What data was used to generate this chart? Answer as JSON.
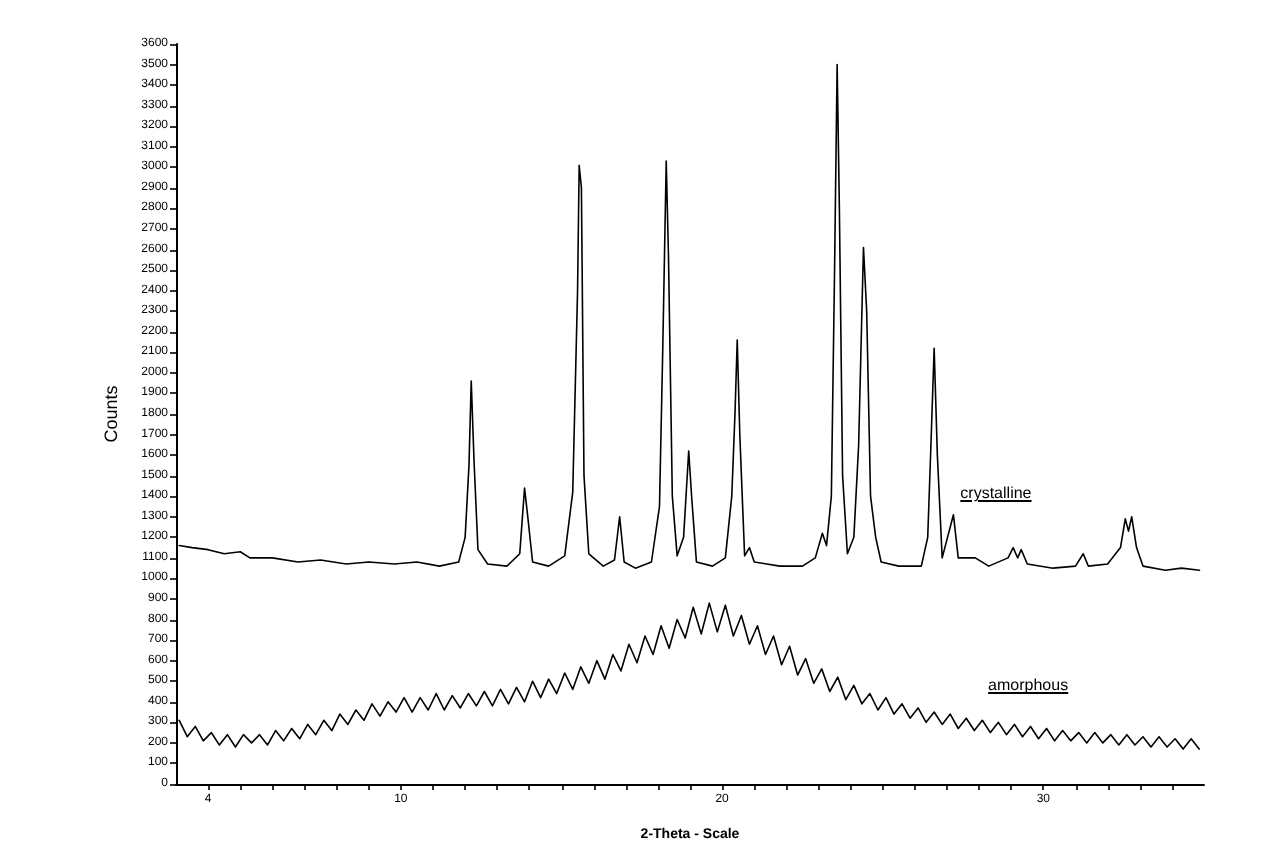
{
  "chart_data": {
    "type": "line",
    "xlabel": "2-Theta - Scale",
    "ylabel": "Counts",
    "line_style": "solid",
    "xlim": [
      3,
      35
    ],
    "xticks": [
      4,
      {
        "value": 5,
        "label": null
      },
      {
        "value": 6,
        "label": null
      },
      {
        "value": 7,
        "label": null
      },
      {
        "value": 8,
        "label": null
      },
      {
        "value": 9,
        "label": null
      },
      10,
      {
        "value": 11,
        "label": null
      },
      {
        "value": 12,
        "label": null
      },
      {
        "value": 13,
        "label": null
      },
      {
        "value": 14,
        "label": null
      },
      {
        "value": 15,
        "label": null
      },
      {
        "value": 16,
        "label": null
      },
      {
        "value": 17,
        "label": null
      },
      {
        "value": 18,
        "label": null
      },
      {
        "value": 19,
        "label": null
      },
      20,
      {
        "value": 21,
        "label": null
      },
      {
        "value": 22,
        "label": null
      },
      {
        "value": 23,
        "label": null
      },
      {
        "value": 24,
        "label": null
      },
      {
        "value": 25,
        "label": null
      },
      {
        "value": 26,
        "label": null
      },
      {
        "value": 27,
        "label": null
      },
      {
        "value": 28,
        "label": null
      },
      {
        "value": 29,
        "label": null
      },
      30,
      {
        "value": 31,
        "label": null
      },
      {
        "value": 32,
        "label": null
      },
      {
        "value": 33,
        "label": null
      },
      {
        "value": 34,
        "label": null
      }
    ],
    "ylim": [
      0,
      3600
    ],
    "yticks": [
      0,
      100,
      200,
      300,
      400,
      500,
      600,
      700,
      800,
      900,
      1000,
      1100,
      1200,
      1300,
      1400,
      1500,
      1600,
      1700,
      1800,
      1900,
      2000,
      2100,
      2200,
      2300,
      2400,
      2500,
      2600,
      2700,
      2800,
      2900,
      3000,
      3100,
      3200,
      3300,
      3400,
      3500,
      3600
    ],
    "series": [
      {
        "name": "crystalline",
        "color": "#000000",
        "x": [
          3.1,
          3.5,
          4.0,
          4.5,
          5.0,
          5.3,
          6.0,
          6.8,
          7.5,
          8.3,
          9.0,
          9.8,
          10.5,
          11.2,
          11.8,
          12.0,
          12.12,
          12.19,
          12.28,
          12.4,
          12.7,
          13.3,
          13.7,
          13.85,
          13.95,
          14.1,
          14.6,
          15.1,
          15.35,
          15.5,
          15.55,
          15.62,
          15.7,
          15.85,
          16.3,
          16.65,
          16.81,
          16.95,
          17.3,
          17.8,
          18.05,
          18.15,
          18.26,
          18.33,
          18.45,
          18.6,
          18.8,
          18.96,
          19.05,
          19.2,
          19.7,
          20.1,
          20.3,
          20.4,
          20.47,
          20.55,
          20.7,
          20.85,
          21.0,
          21.8,
          22.5,
          22.9,
          23.12,
          23.25,
          23.4,
          23.5,
          23.58,
          23.65,
          23.75,
          23.9,
          24.1,
          24.25,
          24.4,
          24.5,
          24.62,
          24.78,
          24.95,
          25.5,
          26.2,
          26.4,
          26.5,
          26.6,
          26.7,
          26.85,
          27.2,
          27.35,
          27.88,
          28.3,
          28.9,
          29.06,
          29.2,
          29.31,
          29.5,
          30.3,
          31.0,
          31.24,
          31.4,
          32.0,
          32.4,
          32.55,
          32.65,
          32.75,
          32.9,
          33.1,
          33.8,
          34.3,
          34.86
        ],
        "values": [
          1160,
          1150,
          1140,
          1120,
          1130,
          1100,
          1100,
          1080,
          1090,
          1070,
          1080,
          1070,
          1080,
          1060,
          1080,
          1200,
          1550,
          1960,
          1560,
          1140,
          1070,
          1060,
          1120,
          1440,
          1300,
          1080,
          1060,
          1110,
          1420,
          2400,
          3010,
          2900,
          1500,
          1120,
          1060,
          1090,
          1300,
          1080,
          1050,
          1080,
          1350,
          2100,
          3030,
          2570,
          1400,
          1110,
          1200,
          1620,
          1400,
          1080,
          1060,
          1100,
          1400,
          1800,
          2160,
          1700,
          1110,
          1150,
          1080,
          1060,
          1060,
          1100,
          1220,
          1160,
          1400,
          2500,
          3500,
          2800,
          1500,
          1120,
          1200,
          1650,
          2610,
          2300,
          1400,
          1200,
          1080,
          1060,
          1060,
          1200,
          1650,
          2120,
          1600,
          1100,
          1310,
          1100,
          1100,
          1060,
          1100,
          1150,
          1100,
          1140,
          1070,
          1050,
          1060,
          1120,
          1060,
          1070,
          1150,
          1290,
          1230,
          1300,
          1150,
          1060,
          1040,
          1050,
          1040
        ]
      },
      {
        "name": "amorphous",
        "color": "#000000",
        "x": [
          3.1,
          3.35,
          3.6,
          3.85,
          4.1,
          4.35,
          4.6,
          4.85,
          5.1,
          5.35,
          5.6,
          5.85,
          6.1,
          6.35,
          6.6,
          6.85,
          7.1,
          7.35,
          7.6,
          7.85,
          8.1,
          8.35,
          8.6,
          8.85,
          9.1,
          9.35,
          9.6,
          9.85,
          10.1,
          10.35,
          10.6,
          10.85,
          11.1,
          11.35,
          11.6,
          11.85,
          12.1,
          12.35,
          12.6,
          12.85,
          13.1,
          13.35,
          13.6,
          13.85,
          14.1,
          14.35,
          14.6,
          14.85,
          15.1,
          15.35,
          15.6,
          15.85,
          16.1,
          16.35,
          16.6,
          16.85,
          17.1,
          17.35,
          17.6,
          17.85,
          18.1,
          18.35,
          18.6,
          18.85,
          19.1,
          19.35,
          19.6,
          19.85,
          20.1,
          20.35,
          20.6,
          20.85,
          21.1,
          21.35,
          21.6,
          21.85,
          22.1,
          22.35,
          22.6,
          22.85,
          23.1,
          23.35,
          23.6,
          23.85,
          24.1,
          24.35,
          24.6,
          24.85,
          25.1,
          25.35,
          25.6,
          25.85,
          26.1,
          26.35,
          26.6,
          26.85,
          27.1,
          27.35,
          27.6,
          27.85,
          28.1,
          28.35,
          28.6,
          28.85,
          29.1,
          29.35,
          29.6,
          29.85,
          30.1,
          30.35,
          30.6,
          30.85,
          31.1,
          31.35,
          31.6,
          31.85,
          32.1,
          32.35,
          32.6,
          32.85,
          33.1,
          33.35,
          33.6,
          33.85,
          34.1,
          34.35,
          34.6,
          34.85
        ],
        "values": [
          310,
          230,
          280,
          210,
          250,
          190,
          240,
          180,
          240,
          200,
          240,
          190,
          260,
          210,
          270,
          220,
          290,
          240,
          310,
          260,
          340,
          290,
          360,
          310,
          390,
          330,
          400,
          350,
          420,
          350,
          420,
          360,
          440,
          360,
          430,
          370,
          440,
          380,
          450,
          380,
          460,
          390,
          470,
          400,
          500,
          420,
          510,
          440,
          540,
          460,
          570,
          490,
          600,
          510,
          630,
          550,
          680,
          590,
          720,
          630,
          770,
          660,
          800,
          710,
          860,
          730,
          880,
          740,
          870,
          720,
          820,
          680,
          770,
          630,
          720,
          580,
          670,
          530,
          610,
          490,
          560,
          450,
          520,
          410,
          480,
          390,
          440,
          360,
          420,
          340,
          390,
          320,
          370,
          300,
          350,
          290,
          340,
          270,
          320,
          260,
          310,
          250,
          300,
          240,
          290,
          230,
          280,
          220,
          270,
          210,
          260,
          210,
          250,
          200,
          250,
          200,
          240,
          190,
          240,
          190,
          230,
          180,
          230,
          180,
          220,
          170,
          220,
          170
        ]
      }
    ]
  }
}
